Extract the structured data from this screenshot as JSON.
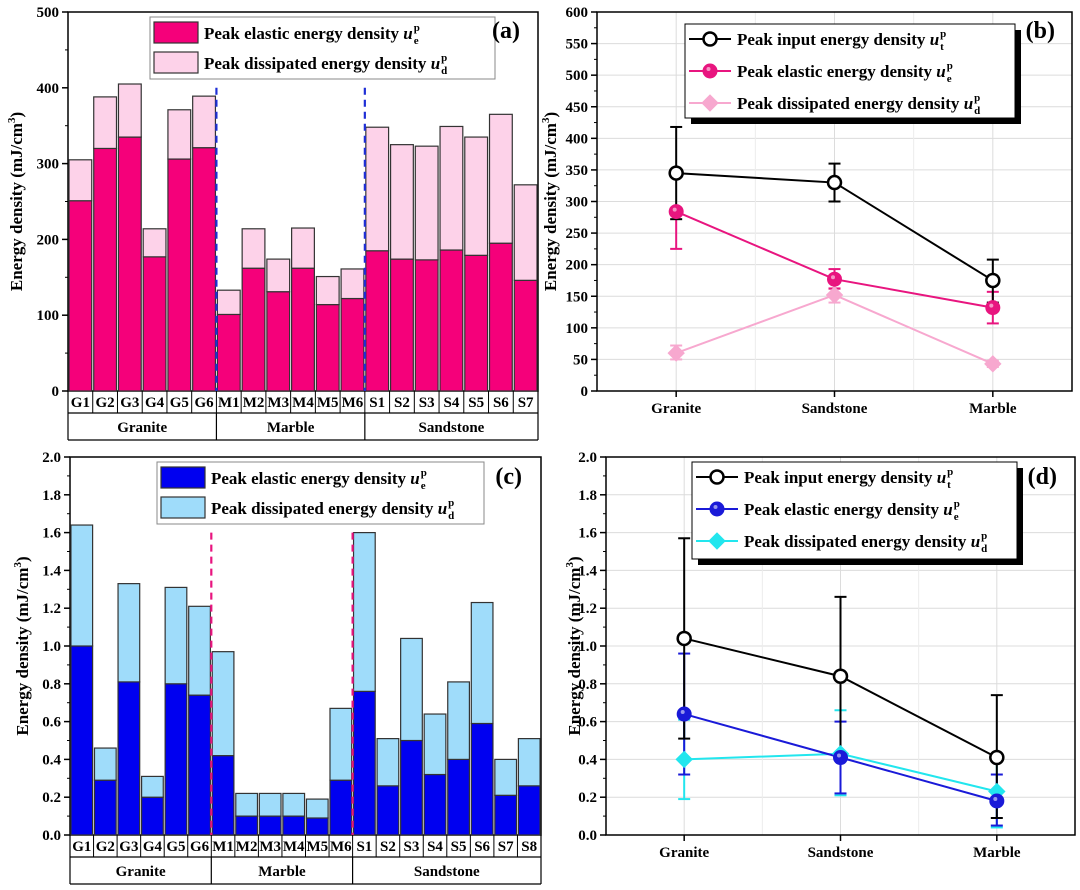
{
  "chart_data": [
    {
      "panel": "(a)",
      "type": "bar",
      "stacked": true,
      "ylabel": "Energy density (mJ/cm3)",
      "ylabel_parts": [
        "Energy density (mJ/cm",
        "3",
        ")"
      ],
      "ylim": [
        0,
        500
      ],
      "yticks": [
        0,
        100,
        200,
        300,
        400,
        500
      ],
      "minor_ticks": true,
      "grid": false,
      "legend_placement": "top-right",
      "groups": [
        {
          "name": "Granite",
          "categories": [
            "G1",
            "G2",
            "G3",
            "G4",
            "G5",
            "G6"
          ]
        },
        {
          "name": "Marble",
          "categories": [
            "M1",
            "M2",
            "M3",
            "M4",
            "M5",
            "M6"
          ]
        },
        {
          "name": "Sandstone",
          "categories": [
            "S1",
            "S2",
            "S3",
            "S4",
            "S5",
            "S6",
            "S7"
          ]
        }
      ],
      "categories": [
        "G1",
        "G2",
        "G3",
        "G4",
        "G5",
        "G6",
        "M1",
        "M2",
        "M3",
        "M4",
        "M5",
        "M6",
        "S1",
        "S2",
        "S3",
        "S4",
        "S5",
        "S6",
        "S7"
      ],
      "separator_color": "#1f2fd6",
      "series": [
        {
          "name": "Peak elastic energy density u_e^p",
          "legend_text": "Peak elastic energy density ",
          "symbol": "u",
          "sub": "e",
          "sup": "p",
          "color": "#f5007a",
          "values": [
            251,
            320,
            335,
            177,
            306,
            321,
            101,
            162,
            131,
            162,
            114,
            122,
            185,
            174,
            173,
            186,
            179,
            195,
            146
          ]
        },
        {
          "name": "Peak dissipated energy density u_d^p",
          "legend_text": "Peak  dissipated energy density ",
          "symbol": "u",
          "sub": "d",
          "sup": "p",
          "color": "#fdd2e9",
          "values": [
            54,
            68,
            70,
            37,
            65,
            68,
            32,
            52,
            43,
            53,
            37,
            39,
            163,
            151,
            150,
            163,
            156,
            170,
            126
          ]
        }
      ],
      "totals": [
        305,
        388,
        405,
        214,
        371,
        389,
        133,
        214,
        174,
        215,
        151,
        161,
        348,
        325,
        323,
        349,
        335,
        365,
        272
      ]
    },
    {
      "panel": "(b)",
      "type": "line",
      "ylabel_parts": [
        "Energy density (mJ/cm",
        "3",
        ")"
      ],
      "ylim": [
        0,
        600
      ],
      "yticks": [
        0,
        50,
        100,
        150,
        200,
        250,
        300,
        350,
        400,
        450,
        500,
        550,
        600
      ],
      "grid": true,
      "legend_placement": "top-right",
      "categories": [
        "Granite",
        "Sandstone",
        "Marble"
      ],
      "series": [
        {
          "name": "Peak input energy density u_t^p",
          "legend_text": "Peak input energy density ",
          "symbol": "u",
          "sub": "t",
          "sup": "p",
          "color": "#000000",
          "marker": "open-circle",
          "values": [
            345,
            330,
            175
          ],
          "err_low": [
            272,
            300,
            140
          ],
          "err_high": [
            418,
            360,
            208
          ]
        },
        {
          "name": "Peak elastic energy density u_e^p",
          "legend_text": "Peak elastic energy density ",
          "symbol": "u",
          "sub": "e",
          "sup": "p",
          "color": "#e8157f",
          "marker": "filled-circle",
          "values": [
            284,
            177,
            132
          ],
          "err_low": [
            225,
            162,
            107
          ],
          "err_high": [
            284,
            193,
            157
          ]
        },
        {
          "name": "Peak dissipated energy density u_d^p",
          "legend_text": "Peak dissipated energy density ",
          "symbol": "u",
          "sub": "d",
          "sup": "p",
          "color": "#f7a8cf",
          "marker": "diamond",
          "values": [
            60,
            152,
            43
          ],
          "err_low": [
            50,
            140,
            38
          ],
          "err_high": [
            72,
            163,
            48
          ]
        }
      ]
    },
    {
      "panel": "(c)",
      "type": "bar",
      "stacked": true,
      "ylabel_parts": [
        "Energy density (mJ/cm",
        "3",
        ")"
      ],
      "ylim": [
        0,
        2.0
      ],
      "yticks": [
        0.0,
        0.2,
        0.4,
        0.6,
        0.8,
        1.0,
        1.2,
        1.4,
        1.6,
        1.8,
        2.0
      ],
      "ytick_labels": [
        "0.0",
        "0.2",
        "0.4",
        "0.6",
        "0.8",
        "1.0",
        "1.2",
        "1.4",
        "1.6",
        "1.8",
        "2.0"
      ],
      "grid": false,
      "legend_placement": "top-right",
      "groups": [
        {
          "name": "Granite",
          "categories": [
            "G1",
            "G2",
            "G3",
            "G4",
            "G5",
            "G6"
          ]
        },
        {
          "name": "Marble",
          "categories": [
            "M1",
            "M2",
            "M3",
            "M4",
            "M5",
            "M6"
          ]
        },
        {
          "name": "Sandstone",
          "categories": [
            "S1",
            "S2",
            "S3",
            "S4",
            "S5",
            "S6",
            "S7",
            "S8"
          ]
        }
      ],
      "categories": [
        "G1",
        "G2",
        "G3",
        "G4",
        "G5",
        "G6",
        "M1",
        "M2",
        "M3",
        "M4",
        "M5",
        "M6",
        "S1",
        "S2",
        "S3",
        "S4",
        "S5",
        "S6",
        "S7",
        "S8"
      ],
      "separator_color": "#e8157f",
      "series": [
        {
          "name": "Peak elastic energy density u_e^p",
          "legend_text": "Peak elastic energy density ",
          "symbol": "u",
          "sub": "e",
          "sup": "p",
          "color": "#0000f0",
          "values": [
            1.0,
            0.29,
            0.81,
            0.2,
            0.8,
            0.74,
            0.42,
            0.1,
            0.1,
            0.1,
            0.09,
            0.29,
            0.76,
            0.26,
            0.5,
            0.32,
            0.4,
            0.59,
            0.21,
            0.26
          ]
        },
        {
          "name": "Peak dissipated energy density u_d^p",
          "legend_text": "Peak  dissipated energy density ",
          "symbol": "u",
          "sub": "d",
          "sup": "p",
          "color": "#9fdcfa",
          "values": [
            0.64,
            0.17,
            0.52,
            0.11,
            0.51,
            0.47,
            0.55,
            0.12,
            0.12,
            0.12,
            0.1,
            0.38,
            0.84,
            0.25,
            0.54,
            0.32,
            0.41,
            0.64,
            0.19,
            0.25
          ]
        }
      ],
      "totals": [
        1.64,
        0.46,
        1.33,
        0.31,
        1.31,
        1.21,
        0.97,
        0.22,
        0.22,
        0.22,
        0.19,
        0.67,
        1.6,
        0.51,
        1.04,
        0.64,
        0.81,
        1.23,
        0.4,
        0.51
      ]
    },
    {
      "panel": "(d)",
      "type": "line",
      "ylabel_parts": [
        "Energy density (mJ/cm",
        "3",
        ")"
      ],
      "ylim": [
        0,
        2.0
      ],
      "yticks": [
        0.0,
        0.2,
        0.4,
        0.6,
        0.8,
        1.0,
        1.2,
        1.4,
        1.6,
        1.8,
        2.0
      ],
      "ytick_labels": [
        "0.0",
        "0.2",
        "0.4",
        "0.6",
        "0.8",
        "1.0",
        "1.2",
        "1.4",
        "1.6",
        "1.8",
        "2.0"
      ],
      "grid": true,
      "legend_placement": "top-right",
      "categories": [
        "Granite",
        "Sandstone",
        "Marble"
      ],
      "series": [
        {
          "name": "Peak input energy density u_t^p",
          "legend_text": "Peak input energy density ",
          "symbol": "u",
          "sub": "t",
          "sup": "p",
          "color": "#000000",
          "marker": "open-circle",
          "values": [
            1.04,
            0.84,
            0.41
          ],
          "err_low": [
            0.51,
            0.42,
            0.09
          ],
          "err_high": [
            1.57,
            1.26,
            0.74
          ]
        },
        {
          "name": "Peak elastic energy density u_e^p",
          "legend_text": "Peak elastic energy density ",
          "symbol": "u",
          "sub": "e",
          "sup": "p",
          "color": "#1a1ad8",
          "marker": "filled-circle",
          "values": [
            0.64,
            0.41,
            0.18
          ],
          "err_low": [
            0.32,
            0.22,
            0.05
          ],
          "err_high": [
            0.96,
            0.6,
            0.32
          ]
        },
        {
          "name": "Peak dissipated energy density u_d^p",
          "legend_text": "Peak dissipated energy density ",
          "symbol": "u",
          "sub": "d",
          "sup": "p",
          "color": "#22e6ee",
          "marker": "diamond",
          "values": [
            0.4,
            0.43,
            0.23
          ],
          "err_low": [
            0.19,
            0.21,
            0.04
          ],
          "err_high": [
            0.61,
            0.66,
            0.42
          ]
        }
      ]
    }
  ]
}
